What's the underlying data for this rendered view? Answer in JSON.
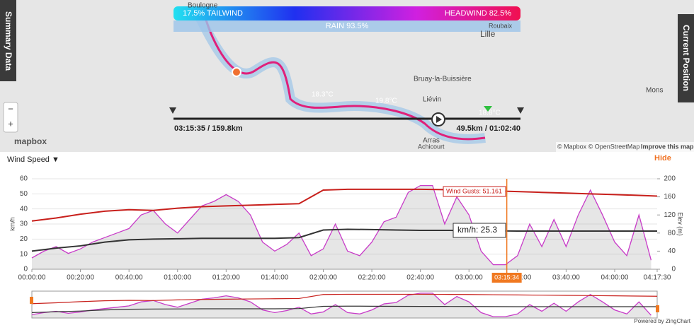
{
  "map": {
    "tailwind": "17.5% TAILWIND",
    "headwind": "HEADWIND 82.5%",
    "rain": "RAIN 93.5%",
    "places": [
      "Boulogne",
      "Lille",
      "Bruay-la-Buissière",
      "Liévin",
      "Arras",
      "Achicourt",
      "Mons",
      "Roubaix"
    ],
    "temps": [
      "18.3°C",
      "19.8°C",
      "18.8°C"
    ],
    "timeline_left": "03:15:35 / 159.8km",
    "timeline_right": "49.5km / 01:02:40",
    "logo": "mapbox",
    "attribution": "© Mapbox © OpenStreetMap",
    "improve": "Improve this map",
    "zoom_in": "+",
    "zoom_out": "−"
  },
  "tabs": {
    "left": "Summary Data",
    "right": "Current Position"
  },
  "controls": {
    "metric": "Wind Speed ▼",
    "hide": "Hide"
  },
  "footer": "Powered by ZingChart",
  "chart_data": {
    "type": "line",
    "ylabel": "km/h",
    "y2label": "Elev (m)",
    "xlim": [
      0,
      257.5
    ],
    "xticks": [
      {
        "value": 0,
        "label": "00:00:00"
      },
      {
        "value": 20,
        "label": "00:20:00"
      },
      {
        "value": 40,
        "label": "00:40:00"
      },
      {
        "value": 60,
        "label": "01:00:00"
      },
      {
        "value": 80,
        "label": "01:20:00"
      },
      {
        "value": 100,
        "label": "01:40:00"
      },
      {
        "value": 120,
        "label": "02:00:00"
      },
      {
        "value": 140,
        "label": "02:20:00"
      },
      {
        "value": 160,
        "label": "02:40:00"
      },
      {
        "value": 180,
        "label": "03:00:00"
      },
      {
        "value": 200,
        "label": "03:20:00"
      },
      {
        "value": 220,
        "label": "03:40:00"
      },
      {
        "value": 240,
        "label": "04:00:00"
      },
      {
        "value": 257.5,
        "label": "04:17:30"
      }
    ],
    "ylim": [
      0,
      60
    ],
    "yticks": [
      0,
      10,
      20,
      30,
      40,
      50,
      60
    ],
    "y2lim": [
      0,
      200
    ],
    "y2ticks": [
      0,
      40,
      80,
      120,
      160,
      200
    ],
    "grid": true,
    "series": [
      {
        "color": "#9a9a9a",
        "axis": "y2",
        "kind": "area",
        "stroke": "#c83cc8",
        "x": [
          0,
          5,
          10,
          15,
          20,
          25,
          30,
          35,
          40,
          45,
          50,
          55,
          60,
          65,
          70,
          75,
          80,
          85,
          90,
          95,
          100,
          105,
          110,
          115,
          120,
          125,
          130,
          135,
          140,
          145,
          150,
          155,
          160,
          165,
          170,
          175,
          180,
          185,
          190,
          195,
          200,
          205,
          210,
          215,
          220,
          225,
          230,
          235,
          240,
          245,
          250,
          255
        ],
        "values": [
          25,
          40,
          50,
          35,
          45,
          60,
          70,
          80,
          90,
          120,
          130,
          100,
          80,
          110,
          140,
          150,
          165,
          150,
          120,
          60,
          40,
          55,
          80,
          30,
          45,
          100,
          40,
          30,
          60,
          105,
          115,
          170,
          185,
          185,
          100,
          160,
          120,
          40,
          10,
          10,
          30,
          100,
          50,
          110,
          50,
          120,
          175,
          120,
          60,
          30,
          120,
          20
        ]
      },
      {
        "name": "Wind Gusts",
        "color": "#c8201c",
        "kind": "line",
        "x": [
          0,
          10,
          20,
          30,
          40,
          50,
          60,
          70,
          80,
          90,
          100,
          110,
          120,
          130,
          140,
          150,
          160,
          170,
          180,
          190,
          200,
          210,
          220,
          230,
          240,
          250,
          257.5
        ],
        "values": [
          32,
          34,
          36.5,
          38.5,
          39.5,
          39,
          40.5,
          41.5,
          42,
          42.5,
          43,
          43.5,
          52.5,
          53,
          53,
          53,
          53,
          52.8,
          52.5,
          52,
          51.5,
          51,
          50.5,
          50,
          49.5,
          49,
          48.5
        ]
      },
      {
        "color": "#333333",
        "kind": "line",
        "x": [
          0,
          10,
          20,
          30,
          40,
          50,
          60,
          70,
          80,
          90,
          100,
          110,
          120,
          130,
          140,
          150,
          160,
          170,
          180,
          190,
          200,
          210,
          220,
          230,
          240,
          250,
          257.5
        ],
        "values": [
          12,
          14,
          15.5,
          18,
          19.5,
          20,
          20.2,
          20.5,
          20.5,
          20.5,
          20.5,
          21,
          26,
          26.5,
          26.3,
          26,
          25.8,
          25.8,
          25.6,
          25.5,
          25.3,
          25.3,
          25.3,
          25.3,
          25.3,
          25.3,
          25.3
        ]
      }
    ],
    "cursor": {
      "x": 195.57,
      "label": "03:15:34",
      "color": "#f07820"
    },
    "tooltips": [
      "Wind Gusts: 51.161",
      "km/h: 25.3"
    ]
  }
}
